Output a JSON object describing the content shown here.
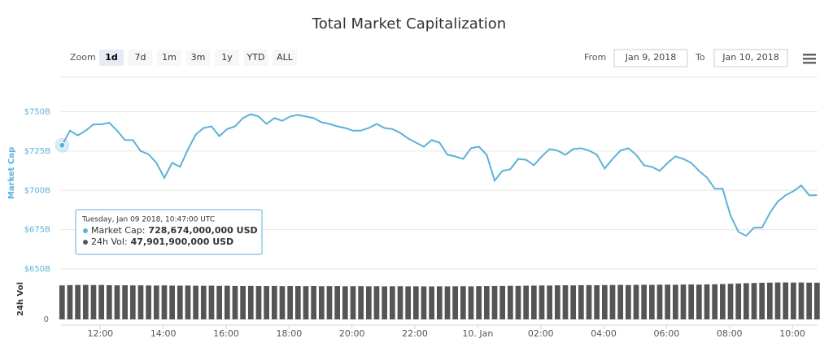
{
  "chart_data": {
    "type": "line",
    "title": "Total Market Capitalization",
    "range_selector": {
      "zoom_label": "Zoom",
      "buttons": [
        "1d",
        "7d",
        "1m",
        "3m",
        "1y",
        "YTD",
        "ALL"
      ],
      "selected": "1d",
      "from_label": "From",
      "from": "Jan 9, 2018",
      "to_label": "To",
      "to": "Jan 10, 2018"
    },
    "ylabel": "Market Cap",
    "y2label": "24h Vol",
    "x": [
      "2018-01-09T10:47",
      "2018-01-09T11:02",
      "2018-01-09T11:17",
      "2018-01-09T11:32",
      "2018-01-09T11:47",
      "2018-01-09T12:02",
      "2018-01-09T12:17",
      "2018-01-09T12:32",
      "2018-01-09T12:47",
      "2018-01-09T13:02",
      "2018-01-09T13:17",
      "2018-01-09T13:32",
      "2018-01-09T13:47",
      "2018-01-09T14:02",
      "2018-01-09T14:17",
      "2018-01-09T14:32",
      "2018-01-09T14:47",
      "2018-01-09T15:02",
      "2018-01-09T15:17",
      "2018-01-09T15:32",
      "2018-01-09T15:47",
      "2018-01-09T16:02",
      "2018-01-09T16:17",
      "2018-01-09T16:32",
      "2018-01-09T16:47",
      "2018-01-09T17:02",
      "2018-01-09T17:17",
      "2018-01-09T17:32",
      "2018-01-09T17:47",
      "2018-01-09T18:02",
      "2018-01-09T18:17",
      "2018-01-09T18:32",
      "2018-01-09T18:47",
      "2018-01-09T19:02",
      "2018-01-09T19:17",
      "2018-01-09T19:32",
      "2018-01-09T19:47",
      "2018-01-09T20:02",
      "2018-01-09T20:17",
      "2018-01-09T20:32",
      "2018-01-09T20:47",
      "2018-01-09T21:02",
      "2018-01-09T21:17",
      "2018-01-09T21:32",
      "2018-01-09T21:47",
      "2018-01-09T22:02",
      "2018-01-09T22:17",
      "2018-01-09T22:32",
      "2018-01-09T22:47",
      "2018-01-09T23:02",
      "2018-01-09T23:17",
      "2018-01-09T23:32",
      "2018-01-09T23:47",
      "2018-01-10T00:02",
      "2018-01-10T00:17",
      "2018-01-10T00:32",
      "2018-01-10T00:47",
      "2018-01-10T01:02",
      "2018-01-10T01:17",
      "2018-01-10T01:32",
      "2018-01-10T01:47",
      "2018-01-10T02:02",
      "2018-01-10T02:17",
      "2018-01-10T02:32",
      "2018-01-10T02:47",
      "2018-01-10T03:02",
      "2018-01-10T03:17",
      "2018-01-10T03:32",
      "2018-01-10T03:47",
      "2018-01-10T04:02",
      "2018-01-10T04:17",
      "2018-01-10T04:32",
      "2018-01-10T04:47",
      "2018-01-10T05:02",
      "2018-01-10T05:17",
      "2018-01-10T05:32",
      "2018-01-10T05:47",
      "2018-01-10T06:02",
      "2018-01-10T06:17",
      "2018-01-10T06:32",
      "2018-01-10T06:47",
      "2018-01-10T07:02",
      "2018-01-10T07:17",
      "2018-01-10T07:32",
      "2018-01-10T07:47",
      "2018-01-10T08:02",
      "2018-01-10T08:17",
      "2018-01-10T08:32",
      "2018-01-10T08:47",
      "2018-01-10T09:02",
      "2018-01-10T09:17",
      "2018-01-10T09:32",
      "2018-01-10T09:47",
      "2018-01-10T10:02",
      "2018-01-10T10:17",
      "2018-01-10T10:32",
      "2018-01-10T10:47"
    ],
    "series": [
      {
        "name": "Market Cap",
        "color": "#5cb2d8",
        "values": [
          728.674,
          738,
          735,
          738,
          742,
          742,
          743,
          738,
          732,
          732,
          725,
          723,
          717.5,
          708,
          717.5,
          715,
          726,
          735.5,
          739.7,
          740.7,
          734.5,
          739,
          740.7,
          746,
          748.5,
          747,
          742.3,
          746,
          744.3,
          747,
          748,
          747,
          746,
          743.3,
          742.3,
          740.7,
          739.7,
          738,
          738,
          739.7,
          742.3,
          739.7,
          739,
          736.6,
          733,
          730.4,
          727.8,
          732,
          730.4,
          722.7,
          721.6,
          720,
          726.8,
          727.8,
          722.7,
          706.2,
          712.4,
          713.4,
          720,
          719.5,
          716,
          721.6,
          726.3,
          725.3,
          722.7,
          726.3,
          726.8,
          725.3,
          722.7,
          713.9,
          720,
          725.3,
          726.8,
          722.7,
          716,
          715,
          712.4,
          717.5,
          721.6,
          720,
          717.5,
          712.4,
          708.2,
          701,
          701,
          684,
          673.7,
          671.1,
          676.3,
          676.3,
          685.6,
          692.8,
          696.9,
          699.5,
          703.1,
          696.9,
          696.9
        ]
      },
      {
        "name": "24h Vol",
        "type": "column",
        "axis": "y2",
        "color": "#555555",
        "values": [
          47901900000,
          48300000000,
          48500000000,
          48600000000,
          48400000000,
          48500000000,
          48200000000,
          48000000000,
          48100000000,
          47900000000,
          48000000000,
          47800000000,
          47700000000,
          47900000000,
          47600000000,
          47500000000,
          47700000000,
          47400000000,
          47300000000,
          47500000000,
          47200000000,
          47400000000,
          47100000000,
          47000000000,
          47200000000,
          47000000000,
          46900000000,
          47100000000,
          46800000000,
          47000000000,
          46900000000,
          46800000000,
          47000000000,
          46700000000,
          46800000000,
          46900000000,
          46600000000,
          46700000000,
          46800000000,
          46600000000,
          46700000000,
          46500000000,
          46600000000,
          46700000000,
          46500000000,
          46600000000,
          46500000000,
          46400000000,
          46600000000,
          46500000000,
          46600000000,
          46700000000,
          46500000000,
          46800000000,
          46900000000,
          47000000000,
          47100000000,
          47300000000,
          47200000000,
          47500000000,
          47600000000,
          47800000000,
          47700000000,
          48000000000,
          48100000000,
          47900000000,
          48200000000,
          48300000000,
          48100000000,
          48400000000,
          48500000000,
          48600000000,
          48400000000,
          48700000000,
          48800000000,
          48600000000,
          48900000000,
          49000000000,
          48800000000,
          49100000000,
          49200000000,
          49000000000,
          49300000000,
          49500000000,
          49800000000,
          50200000000,
          50600000000,
          51000000000,
          51300000000,
          51600000000,
          51800000000,
          52000000000,
          52100000000,
          51900000000,
          52000000000,
          51800000000,
          51700000000
        ]
      }
    ],
    "xlim": [
      "2018-01-09T10:45",
      "2018-01-10T10:48"
    ],
    "xticks": [
      {
        "value": "2018-01-09T12:00",
        "label": "12:00"
      },
      {
        "value": "2018-01-09T14:00",
        "label": "14:00"
      },
      {
        "value": "2018-01-09T16:00",
        "label": "16:00"
      },
      {
        "value": "2018-01-09T18:00",
        "label": "18:00"
      },
      {
        "value": "2018-01-09T20:00",
        "label": "20:00"
      },
      {
        "value": "2018-01-09T22:00",
        "label": "22:00"
      },
      {
        "value": "2018-01-10T00:00",
        "label": "10. Jan"
      },
      {
        "value": "2018-01-10T02:00",
        "label": "02:00"
      },
      {
        "value": "2018-01-10T04:00",
        "label": "04:00"
      },
      {
        "value": "2018-01-10T06:00",
        "label": "06:00"
      },
      {
        "value": "2018-01-10T08:00",
        "label": "08:00"
      },
      {
        "value": "2018-01-10T10:00",
        "label": "10:00"
      }
    ],
    "ylim": [
      650,
      772
    ],
    "yticks": [
      {
        "value": 650,
        "label": "$650B"
      },
      {
        "value": 675,
        "label": "$675B"
      },
      {
        "value": 700,
        "label": "$700B"
      },
      {
        "value": 725,
        "label": "$725B"
      },
      {
        "value": 750,
        "label": "$750B"
      }
    ],
    "y2lim": [
      0,
      55000000000
    ],
    "y2ticks": [
      0
    ],
    "grid": true,
    "tooltip": {
      "header": "Tuesday, Jan 09 2018, 10:47:00 UTC",
      "items": [
        {
          "label": "Market Cap:",
          "value": "728,674,000,000 USD"
        },
        {
          "label": "24h Vol:",
          "value": "47,901,900,000 USD"
        }
      ]
    }
  }
}
